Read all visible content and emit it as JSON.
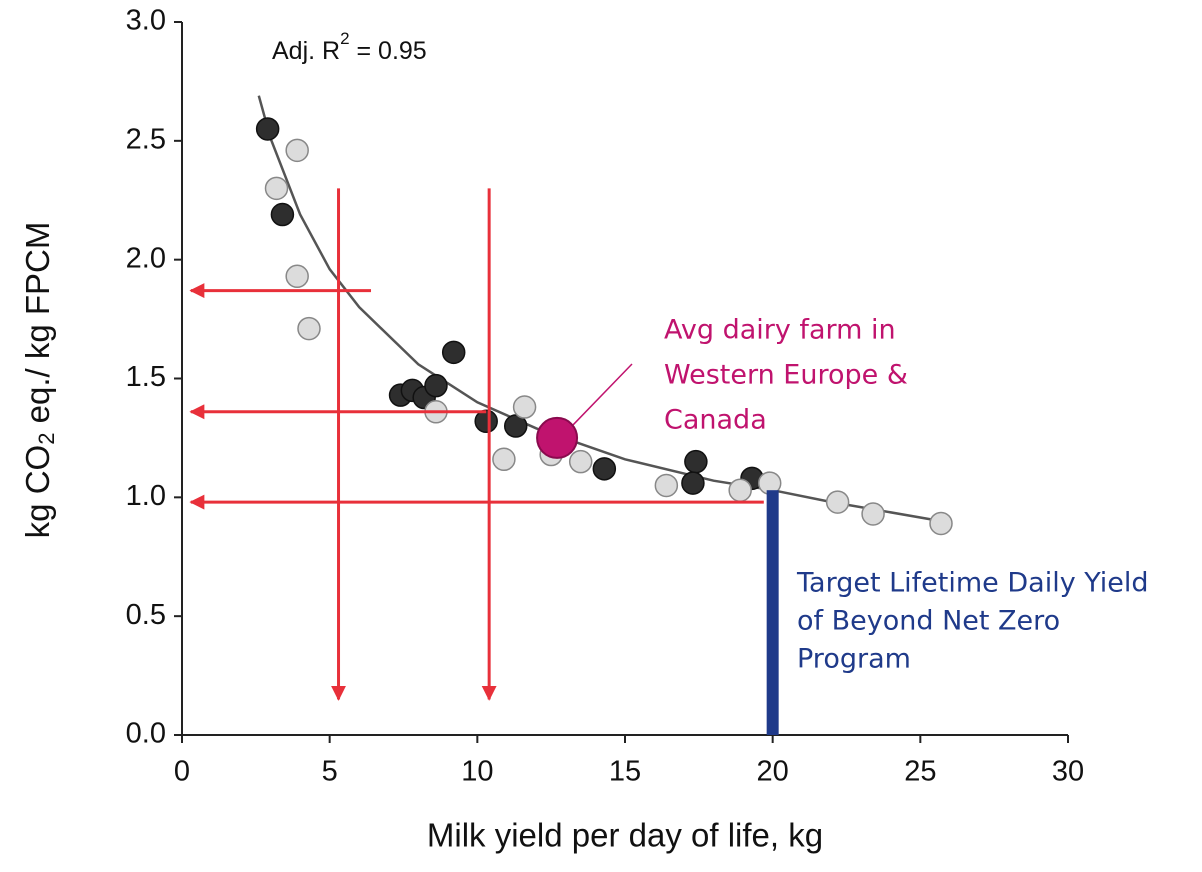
{
  "chart_data": {
    "type": "scatter",
    "x_label": "Milk yield per day of life, kg",
    "y_label": {
      "before": "kg CO",
      "sub": "2",
      "after": " eq./ kg FPCM"
    },
    "r2_label": {
      "before": "Adj. R",
      "sup": "2",
      "after": " = 0.95"
    },
    "xlim": [
      0,
      30
    ],
    "ylim": [
      0,
      3
    ],
    "xticks": [
      0,
      5,
      10,
      15,
      20,
      25,
      30
    ],
    "yticks": [
      {
        "value": 0,
        "label": "0.0"
      },
      0.5,
      {
        "value": 1,
        "label": "1.0"
      },
      1.5,
      {
        "value": 2,
        "label": "2.0"
      },
      2.5,
      {
        "value": 3,
        "label": "3.0"
      }
    ],
    "series": [
      {
        "color": "#2e2e2e",
        "x": [
          2.9,
          3.4,
          7.4,
          7.8,
          8.2,
          8.6,
          9.2,
          10.3,
          11.3,
          14.3,
          17.4,
          17.3,
          19.3
        ],
        "values": [
          2.55,
          2.19,
          1.43,
          1.45,
          1.42,
          1.47,
          1.61,
          1.32,
          1.3,
          1.12,
          1.15,
          1.06,
          1.08
        ]
      },
      {
        "color": "#dcdcdc",
        "x": [
          3.2,
          3.9,
          3.9,
          4.3,
          8.6,
          10.9,
          11.6,
          12.5,
          13.5,
          16.4,
          18.9,
          19.9,
          22.2,
          23.4,
          25.7
        ],
        "values": [
          2.3,
          2.46,
          1.93,
          1.71,
          1.36,
          1.16,
          1.38,
          1.18,
          1.15,
          1.05,
          1.03,
          1.06,
          0.98,
          0.93,
          0.89
        ]
      }
    ],
    "fit": {
      "color": "#555555",
      "x": [
        2.6,
        3,
        4,
        5,
        6,
        8,
        10,
        12,
        15,
        18,
        20,
        22,
        25.7
      ],
      "values": [
        2.69,
        2.51,
        2.19,
        1.96,
        1.8,
        1.56,
        1.4,
        1.29,
        1.16,
        1.07,
        1.03,
        0.98,
        0.9
      ]
    },
    "highlight": {
      "x": 12.7,
      "value": 1.25,
      "color": "#c0136e",
      "label": [
        "Avg dairy farm in",
        "Western Europe &",
        "Canada"
      ]
    },
    "target": {
      "x": 20,
      "value": 1.03,
      "color": "#1f3a8a",
      "label": [
        "Target Lifetime Daily Yield",
        "of Beyond Net Zero",
        "Program"
      ]
    },
    "arrow_color": "#e8303a",
    "arrows": [
      {
        "x1": 5.3,
        "y1": 2.3,
        "x2": 5.3,
        "y2": 0.15
      },
      {
        "x1": 10.4,
        "y1": 2.3,
        "x2": 10.4,
        "y2": 0.15
      },
      {
        "x1": 6.4,
        "y1": 1.87,
        "x2": 0.3,
        "y2": 1.87
      },
      {
        "x1": 10.3,
        "y1": 1.36,
        "x2": 0.3,
        "y2": 1.36
      },
      {
        "x1": 19.7,
        "y1": 0.98,
        "x2": 0.3,
        "y2": 0.98
      }
    ]
  }
}
